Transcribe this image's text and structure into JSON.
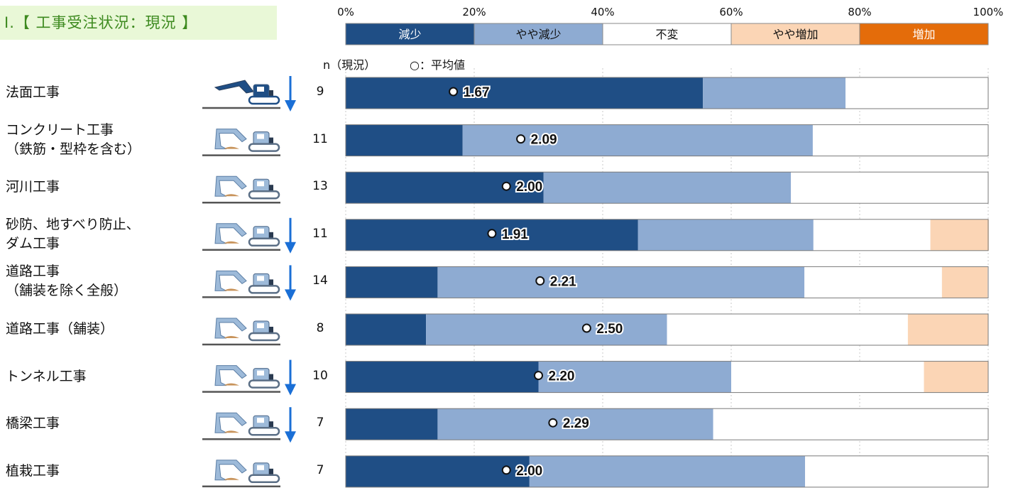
{
  "title": "Ⅰ.【 工事受注状況：現況 】",
  "subtitle_n": "n（現況）",
  "subtitle_avg": "○：平均値",
  "colors": {
    "減少": "#1f4e85",
    "やや減少": "#8eabd2",
    "不変": "#ffffff",
    "やや増加": "#fbd5b5",
    "増加": "#e46c0a",
    "trend_arrow": "#1a6fd6",
    "excavator": "#9dbad9",
    "ground": "#555555"
  },
  "icons": {
    "machine": "excavator-icon",
    "trend": "down-arrow-icon"
  },
  "chart_data": {
    "type": "bar",
    "orientation": "horizontal",
    "stacked": true,
    "xlim": [
      0,
      100
    ],
    "x_unit": "%",
    "ticks": [
      "0%",
      "20%",
      "40%",
      "60%",
      "80%",
      "100%"
    ],
    "legend_placement": "top",
    "legend": [
      "減少",
      "やや減少",
      "不変",
      "やや増加",
      "増加"
    ],
    "categories": [
      {
        "label": [
          "法面工事"
        ],
        "n": "9",
        "mean": "1.67",
        "highlight": true,
        "arrow": true
      },
      {
        "label": [
          "コンクリート工事",
          "（鉄筋・型枠を含む）"
        ],
        "n": "11",
        "mean": "2.09",
        "highlight": false,
        "arrow": false
      },
      {
        "label": [
          "河川工事"
        ],
        "n": "13",
        "mean": "2.00",
        "highlight": false,
        "arrow": false
      },
      {
        "label": [
          "砂防、地すべり防止、",
          "ダム工事"
        ],
        "n": "11",
        "mean": "1.91",
        "highlight": false,
        "arrow": true
      },
      {
        "label": [
          "道路工事",
          "（舗装を除く全般）"
        ],
        "n": "14",
        "mean": "2.21",
        "highlight": false,
        "arrow": true
      },
      {
        "label": [
          "道路工事（舗装）"
        ],
        "n": "8",
        "mean": "2.50",
        "highlight": false,
        "arrow": false
      },
      {
        "label": [
          "トンネル工事"
        ],
        "n": "10",
        "mean": "2.20",
        "highlight": false,
        "arrow": true
      },
      {
        "label": [
          "橋梁工事"
        ],
        "n": "7",
        "mean": "2.29",
        "highlight": false,
        "arrow": true
      },
      {
        "label": [
          "植栽工事"
        ],
        "n": "7",
        "mean": "2.00",
        "highlight": false,
        "arrow": false
      }
    ],
    "series": [
      {
        "name": "減少",
        "values": [
          55.6,
          18.2,
          30.8,
          45.5,
          14.3,
          12.5,
          30.0,
          14.3,
          28.6
        ]
      },
      {
        "name": "やや減少",
        "values": [
          22.2,
          54.5,
          38.5,
          27.3,
          57.1,
          37.5,
          30.0,
          42.9,
          42.9
        ]
      },
      {
        "name": "不変",
        "values": [
          22.2,
          27.3,
          30.8,
          18.2,
          21.4,
          37.5,
          30.0,
          42.9,
          28.6
        ]
      },
      {
        "name": "やや増加",
        "values": [
          0,
          0,
          0,
          9.1,
          7.1,
          12.5,
          10.0,
          0,
          0
        ]
      },
      {
        "name": "増加",
        "values": [
          0,
          0,
          0,
          0,
          0,
          0,
          0,
          0,
          0
        ]
      }
    ]
  }
}
